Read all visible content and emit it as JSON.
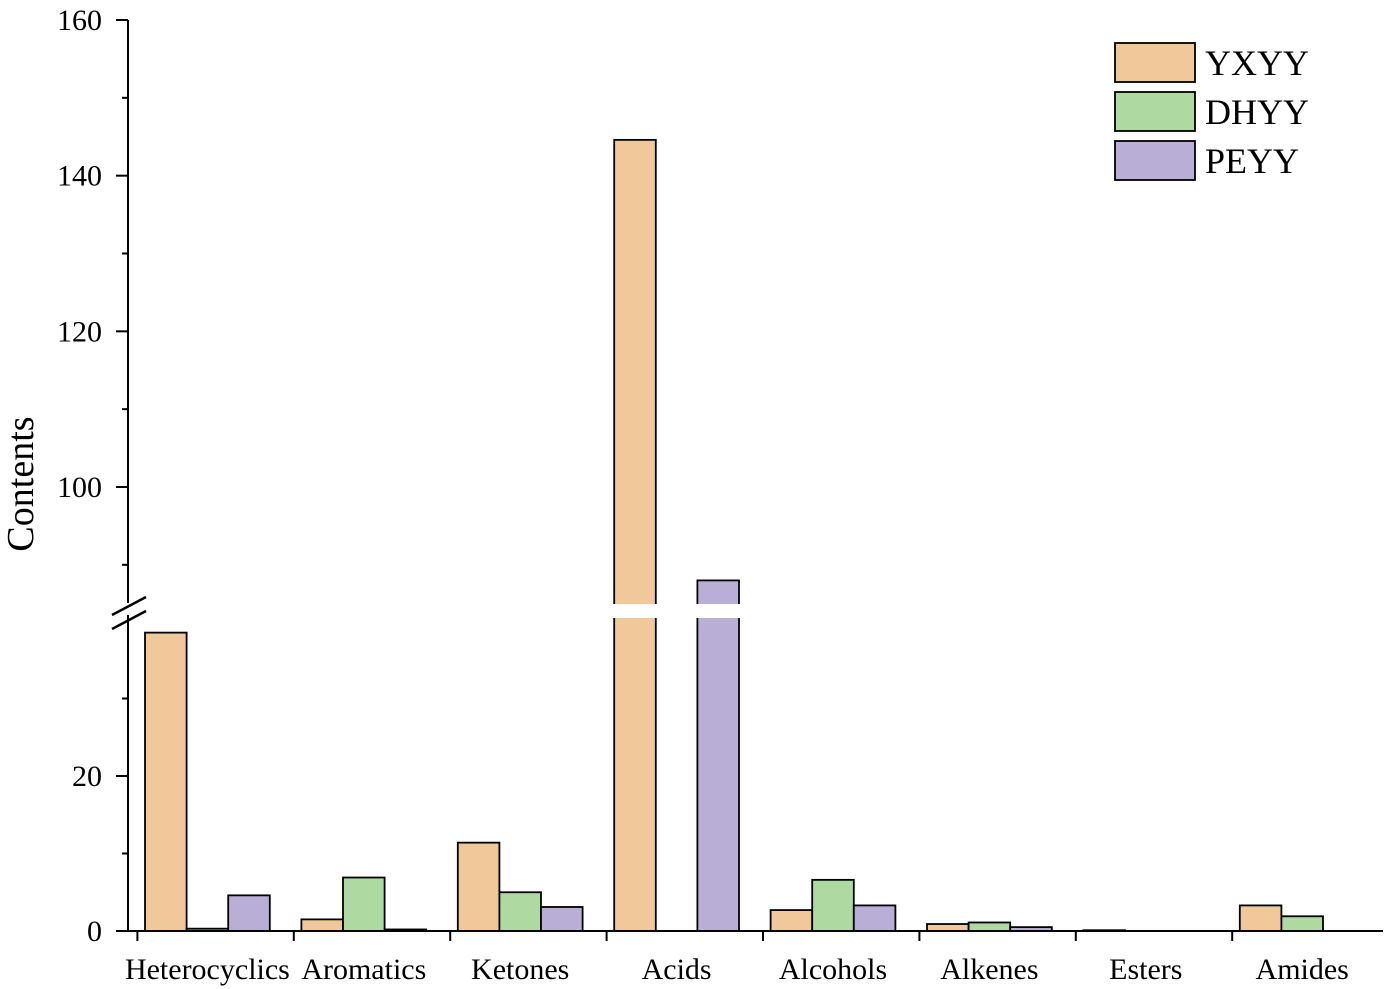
{
  "chart_data": {
    "type": "bar",
    "ylabel": "Contents",
    "xlabel": "",
    "categories": [
      "Heterocyclics",
      "Aromatics",
      "Ketones",
      "Acids",
      "Alcohols",
      "Alkenes",
      "Esters",
      "Amides"
    ],
    "series": [
      {
        "name": "YXYY",
        "color": "#f0c899",
        "values": [
          38.5,
          1.5,
          11.4,
          144.6,
          2.7,
          0.9,
          0.1,
          3.3
        ]
      },
      {
        "name": "DHYY",
        "color": "#aed9a0",
        "values": [
          0.3,
          6.9,
          5.0,
          0.0,
          6.6,
          1.1,
          0.0,
          1.9
        ]
      },
      {
        "name": "PEYY",
        "color": "#b9aed6",
        "values": [
          4.6,
          0.2,
          3.1,
          88.0,
          3.3,
          0.5,
          0.0,
          0.0
        ]
      }
    ],
    "y_axis_break": [
      40,
      85
    ],
    "ylim": [
      0,
      160
    ],
    "y_ticks": [
      0,
      20,
      100,
      120,
      140,
      160
    ],
    "y_tick_labels": [
      "0",
      "20",
      "100",
      "120",
      "140",
      "160"
    ],
    "legend_position": "top-right",
    "grid": false
  }
}
